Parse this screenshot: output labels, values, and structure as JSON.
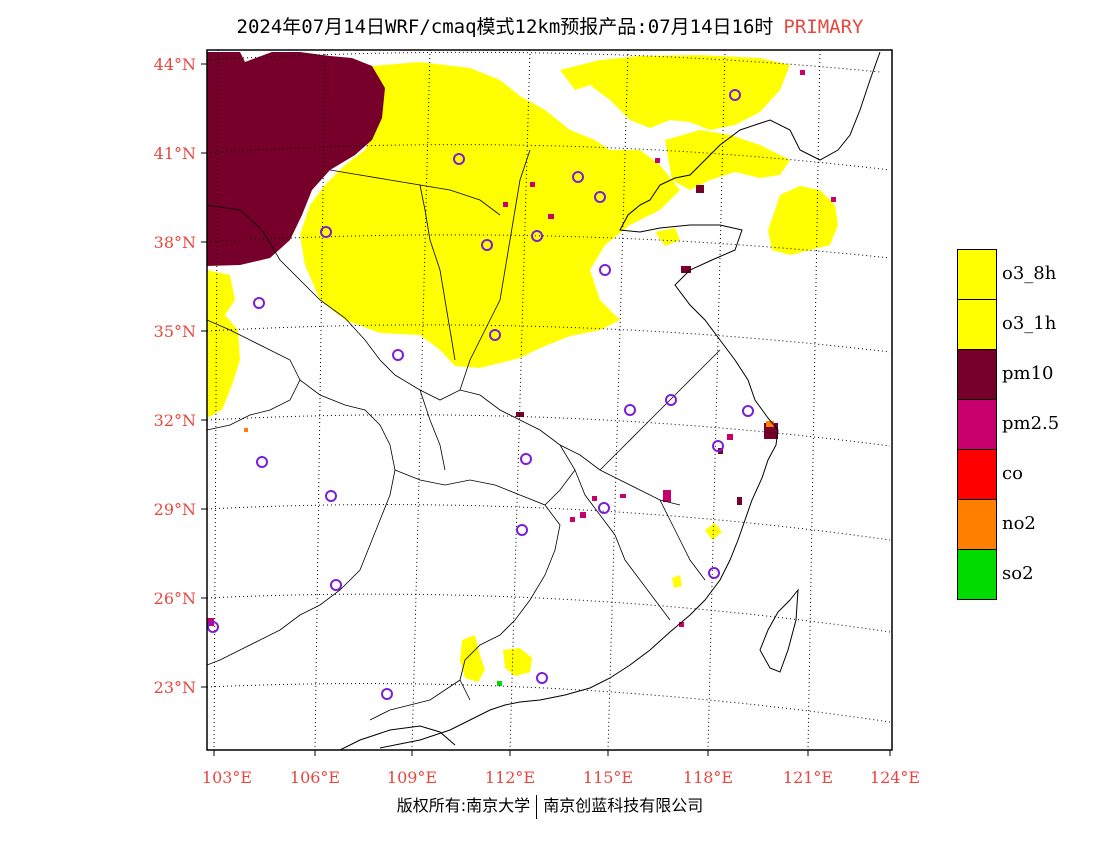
{
  "title": {
    "text": "2024年07月14日WRF/cmaq模式12km预报产品:07月14日16时",
    "tag": "PRIMARY"
  },
  "colors": {
    "accent": "#e8473f",
    "o3": "#ffff00",
    "pm10": "#76002a",
    "pm25": "#c8006e",
    "co": "#ff0000",
    "no2": "#ff7f00",
    "so2": "#00dc00",
    "station": "#7a1fd6"
  },
  "lat_labels": [
    "44°N",
    "41°N",
    "38°N",
    "35°N",
    "32°N",
    "29°N",
    "26°N",
    "23°N"
  ],
  "lon_labels": [
    "103°E",
    "106°E",
    "109°E",
    "112°E",
    "115°E",
    "118°E",
    "121°E",
    "124°E"
  ],
  "legend": [
    {
      "label": "o3_8h",
      "color": "#ffff00"
    },
    {
      "label": "o3_1h",
      "color": "#ffff00"
    },
    {
      "label": "pm10",
      "color": "#76002a"
    },
    {
      "label": "pm2.5",
      "color": "#c8006e"
    },
    {
      "label": "co",
      "color": "#ff0000"
    },
    {
      "label": "no2",
      "color": "#ff7f00"
    },
    {
      "label": "so2",
      "color": "#00dc00"
    }
  ],
  "copyright": {
    "left": "版权所有:南京大学",
    "right": "南京创蓝科技有限公司"
  }
}
